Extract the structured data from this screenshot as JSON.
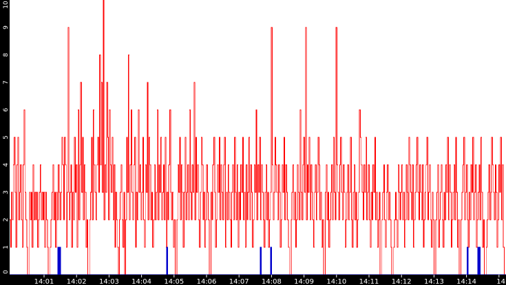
{
  "chart_data": {
    "type": "line",
    "title": "",
    "xlabel": "",
    "ylabel": "",
    "ylim": [
      0,
      10
    ],
    "y_ticks": [
      "0",
      "1",
      "2",
      "3",
      "4",
      "5",
      "6",
      "7",
      "8",
      "9",
      "10"
    ],
    "x_ticks": [
      "14:01",
      "14:02",
      "14:03",
      "14:04",
      "14:05",
      "14:06",
      "14:07",
      "14:08",
      "14:09",
      "14:10",
      "14:11",
      "14:12",
      "14:13",
      "14:14",
      "14"
    ],
    "grid": false,
    "legend": "none",
    "series_colors": [
      "#ff0000",
      "#0000cc"
    ],
    "series": [
      {
        "values": [
          2,
          1,
          3,
          2,
          4,
          5,
          3,
          1,
          4,
          5,
          2,
          3,
          4,
          2,
          1,
          4,
          6,
          3,
          2,
          1,
          0,
          0,
          3,
          2,
          3,
          1,
          4,
          2,
          3,
          2,
          3,
          1,
          2,
          3,
          4,
          2,
          3,
          2,
          3,
          1,
          3,
          2,
          1,
          0,
          0,
          1,
          2,
          3,
          4,
          2,
          3,
          1,
          3,
          2,
          4,
          3,
          2,
          3,
          5,
          4,
          2,
          5,
          4,
          1,
          3,
          9,
          2,
          3,
          4,
          1,
          3,
          2,
          5,
          3,
          4,
          1,
          6,
          2,
          4,
          7,
          3,
          5,
          2,
          4,
          3,
          1,
          2,
          0,
          0,
          2,
          3,
          5,
          2,
          6,
          4,
          3,
          2,
          4,
          5,
          3,
          8,
          4,
          7,
          3,
          10,
          2,
          4,
          3,
          7,
          5,
          2,
          6,
          4,
          3,
          5,
          2,
          4,
          1,
          3,
          2,
          1,
          0,
          2,
          3,
          4,
          2,
          1,
          3,
          0,
          2,
          5,
          3,
          8,
          2,
          4,
          6,
          3,
          2,
          4,
          5,
          1,
          3,
          2,
          6,
          3,
          4,
          2,
          3,
          5,
          2,
          1,
          4,
          3,
          7,
          2,
          5,
          4,
          2,
          3,
          1,
          2,
          4,
          2,
          3,
          6,
          2,
          4,
          3,
          5,
          2,
          3,
          4,
          2,
          5,
          1,
          3,
          2,
          4,
          6,
          3,
          2,
          3,
          1,
          2,
          0,
          0,
          2,
          4,
          3,
          5,
          2,
          4,
          3,
          1,
          3,
          5,
          2,
          3,
          4,
          2,
          6,
          3,
          2,
          4,
          3,
          7,
          2,
          5,
          3,
          4,
          2,
          1,
          3,
          5,
          4,
          2,
          3,
          1,
          2,
          4,
          3,
          2,
          0,
          0,
          3,
          2,
          4,
          5,
          3,
          1,
          2,
          4,
          3,
          5,
          2,
          4,
          3,
          2,
          4,
          5,
          1,
          3,
          2,
          4,
          3,
          2,
          1,
          3,
          4,
          2,
          5,
          3,
          2,
          4,
          1,
          3,
          2,
          4,
          3,
          5,
          2,
          3,
          1,
          4,
          2,
          3,
          5,
          2,
          4,
          3,
          1,
          2,
          4,
          3,
          6,
          2,
          4,
          3,
          5,
          2,
          4,
          3,
          2,
          1,
          3,
          4,
          2,
          3,
          1,
          2,
          3,
          9,
          4,
          2,
          3,
          5,
          4,
          3,
          2,
          4,
          3,
          1,
          2,
          4,
          3,
          5,
          2,
          4,
          3,
          2,
          1,
          0,
          0,
          2,
          3,
          4,
          2,
          3,
          1,
          2,
          4,
          3,
          2,
          6,
          3,
          2,
          4,
          5,
          3,
          9,
          2,
          4,
          3,
          5,
          2,
          4,
          3,
          2,
          1,
          3,
          4,
          2,
          3,
          5,
          4,
          2,
          3,
          1,
          2,
          0,
          0,
          3,
          4,
          2,
          3,
          1,
          2,
          3,
          4,
          2,
          5,
          3,
          2,
          9,
          4,
          3,
          2,
          4,
          5,
          3,
          2,
          4,
          3,
          1,
          2,
          3,
          4,
          2,
          3,
          5,
          2,
          1,
          3,
          4,
          2,
          3,
          1,
          2,
          3,
          6,
          5,
          4,
          3,
          2,
          4,
          3,
          5,
          2,
          3,
          4,
          2,
          1,
          3,
          2,
          4,
          3,
          5,
          2,
          3,
          1,
          2,
          3,
          0,
          0,
          2,
          3,
          4,
          2,
          1,
          3,
          4,
          2,
          3,
          2,
          1,
          0,
          0,
          1,
          2,
          3,
          2,
          1,
          4,
          3,
          2,
          3,
          4,
          2,
          3,
          1,
          2,
          4,
          3,
          2,
          5,
          4,
          3,
          2,
          4,
          1,
          2,
          3,
          4,
          5,
          3,
          2,
          4,
          3,
          2,
          4,
          1,
          2,
          3,
          4,
          5,
          2,
          3,
          4,
          2,
          1,
          3,
          2,
          0,
          0,
          2,
          3,
          4,
          1,
          2,
          3,
          4,
          2,
          1,
          3,
          2,
          4,
          3,
          5,
          2,
          4,
          3,
          1,
          2,
          3,
          4,
          2,
          5,
          3,
          1,
          2,
          0,
          0,
          2,
          3,
          4,
          5,
          2,
          3,
          4,
          2,
          1,
          3,
          2,
          4,
          3,
          5,
          2,
          3,
          4,
          1,
          2,
          3,
          4,
          2,
          5,
          3,
          1,
          2,
          0,
          0,
          1,
          2,
          3,
          4,
          2,
          3,
          5,
          4,
          3,
          2,
          4,
          3,
          1,
          2,
          4,
          3,
          5,
          2,
          4,
          1,
          0,
          0
        ]
      },
      {
        "values": [
          0,
          0,
          0,
          0,
          0,
          0,
          0,
          0,
          0,
          0,
          0,
          0,
          0,
          0,
          0,
          0,
          0,
          0,
          0,
          0,
          0,
          0,
          0,
          0,
          0,
          0,
          0,
          0,
          0,
          0,
          0,
          0,
          0,
          0,
          0,
          0,
          0,
          0,
          0,
          0,
          0,
          0,
          0,
          0,
          0,
          0,
          0,
          0,
          0,
          0,
          0,
          0,
          0,
          0,
          0,
          0,
          0,
          0,
          0,
          0,
          1,
          0,
          1,
          0,
          0,
          0,
          0,
          0,
          0,
          0,
          0,
          0,
          0,
          0,
          0,
          0,
          0,
          0,
          0,
          0,
          0,
          0,
          0,
          0,
          0,
          0,
          0,
          0,
          0,
          0,
          0,
          0,
          0,
          0,
          0,
          0,
          0,
          0,
          0,
          0,
          0,
          0,
          0,
          0,
          0,
          0,
          0,
          0,
          0,
          0,
          0,
          0,
          0,
          0,
          0,
          0,
          0,
          0,
          0,
          0,
          0,
          0,
          0,
          0,
          0,
          0,
          0,
          0,
          0,
          0,
          0,
          0,
          0,
          0,
          0,
          0,
          0,
          0,
          0,
          0,
          0,
          0,
          0,
          0,
          0,
          0,
          0,
          0,
          0,
          0,
          0,
          0,
          0,
          0,
          0,
          0,
          0,
          0,
          0,
          0,
          0,
          0,
          0,
          0,
          0,
          0,
          0,
          0,
          0,
          0,
          0,
          0,
          0,
          0,
          0,
          0,
          0,
          0,
          0,
          0,
          0,
          0,
          0,
          0,
          0,
          0,
          0,
          0,
          0,
          0,
          0,
          0,
          0,
          0,
          0,
          1,
          0,
          0,
          0,
          0,
          0,
          0,
          0,
          0,
          0,
          0,
          0,
          0,
          0,
          0,
          0,
          0,
          0,
          0,
          0,
          0,
          0,
          0,
          0,
          0,
          0,
          0,
          0,
          0,
          0,
          0,
          0,
          0,
          0,
          0,
          0,
          0,
          0,
          0,
          0,
          0,
          0,
          0,
          0,
          0,
          0,
          0,
          0,
          0,
          0,
          0,
          0,
          0,
          0,
          0,
          0,
          0,
          0,
          0,
          0,
          0,
          0,
          0,
          0,
          0,
          0,
          0,
          0,
          0,
          0,
          0,
          0,
          0,
          0,
          0,
          0,
          0,
          0,
          0,
          0,
          0,
          0,
          0,
          0,
          0,
          0,
          0,
          0,
          0,
          0,
          0,
          0,
          0,
          0,
          0,
          0,
          0,
          0,
          0,
          0,
          0,
          0,
          0,
          0,
          0,
          0,
          0,
          0,
          0,
          0,
          0,
          0,
          0,
          0,
          0,
          0,
          1,
          0,
          0,
          0,
          0,
          0,
          0,
          0,
          0,
          0,
          0,
          0,
          0,
          1,
          0,
          0,
          0,
          0,
          0,
          0,
          0,
          0,
          0,
          0,
          0,
          0,
          0,
          0,
          0,
          0,
          0,
          0,
          0,
          0,
          0,
          0,
          0,
          0,
          0,
          0,
          0,
          0,
          0,
          0,
          0,
          0,
          0,
          0,
          0,
          0,
          0,
          0,
          0,
          0,
          0,
          0,
          0,
          0,
          0,
          0,
          0,
          0,
          0,
          0,
          0,
          0,
          0,
          0,
          0,
          0,
          0,
          0,
          0,
          0,
          0,
          0,
          0,
          0,
          0,
          0,
          0,
          0,
          0,
          0,
          0,
          0,
          0,
          0,
          0,
          0,
          0,
          0,
          0,
          0,
          0,
          0,
          0,
          0,
          0,
          0,
          0,
          0,
          0,
          0,
          0,
          0,
          0,
          0,
          0,
          0,
          0,
          0,
          0,
          0,
          0,
          0,
          0,
          0,
          0,
          0,
          0,
          0,
          0,
          0,
          0,
          0,
          0,
          0,
          0,
          0,
          0,
          0,
          0,
          0,
          0,
          0,
          0,
          0,
          0,
          0,
          0,
          0,
          0,
          0,
          0,
          0,
          0,
          0,
          0,
          0,
          0,
          0,
          0,
          0,
          0,
          0,
          0,
          0,
          0,
          0,
          0,
          0,
          0,
          0,
          0,
          0,
          0,
          0,
          0,
          0,
          0,
          0,
          0,
          0,
          0,
          0,
          0,
          0,
          0,
          0,
          0,
          0,
          0,
          0,
          0,
          0,
          0,
          0,
          0,
          0,
          0,
          0,
          0,
          0,
          0,
          0,
          0,
          0,
          0,
          0,
          0,
          0,
          0,
          0,
          0,
          0,
          0,
          0,
          0,
          0,
          0,
          0,
          0,
          0,
          0,
          0,
          0,
          0,
          0,
          0,
          0,
          0,
          0,
          0,
          0,
          0,
          0,
          0,
          0,
          0,
          0,
          0,
          0,
          0,
          0,
          0,
          0,
          0,
          0,
          0,
          0,
          0,
          0,
          0,
          0,
          0,
          0,
          0,
          0,
          0,
          0,
          0,
          0,
          0,
          0,
          0,
          0,
          1,
          0,
          0,
          0,
          0,
          0,
          0,
          0,
          0,
          0,
          0,
          0,
          0,
          1,
          0,
          1,
          0,
          0,
          0,
          0,
          0,
          0,
          0,
          0,
          0,
          0,
          0,
          0,
          0,
          0,
          0,
          0,
          0,
          0,
          0,
          0,
          0,
          0,
          0,
          0,
          0,
          0,
          0,
          0,
          0,
          0,
          0,
          0
        ]
      }
    ]
  }
}
